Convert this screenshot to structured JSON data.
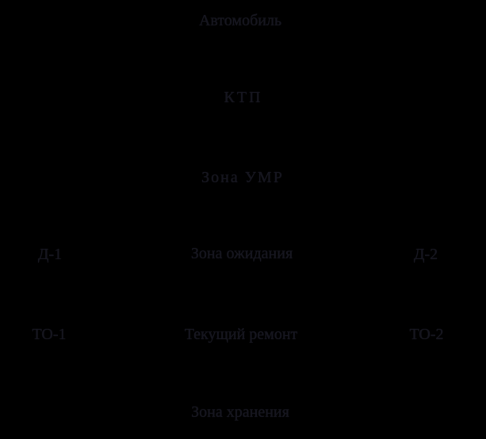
{
  "canvas": {
    "background_color": "#000000",
    "text_color": "#15151e",
    "description": "Flowchart of vehicle service process; connector arrows are black on black (not visible), only faint dark serif labels show"
  },
  "diagram": {
    "nodes": [
      {
        "id": "avtomobil",
        "label": "Автомобиль"
      },
      {
        "id": "ktp",
        "label": "КТП"
      },
      {
        "id": "zona-umr",
        "label": "Зона УМР"
      },
      {
        "id": "d1",
        "label": "Д-1"
      },
      {
        "id": "zona-ozhidaniya",
        "label": "Зона ожидания"
      },
      {
        "id": "d2",
        "label": "Д-2"
      },
      {
        "id": "to1",
        "label": "ТО-1"
      },
      {
        "id": "tekushchiy-remont",
        "label": "Текущий ремонт"
      },
      {
        "id": "to2",
        "label": "ТО-2"
      },
      {
        "id": "zona-khraneniya",
        "label": "Зона хранения"
      }
    ]
  }
}
